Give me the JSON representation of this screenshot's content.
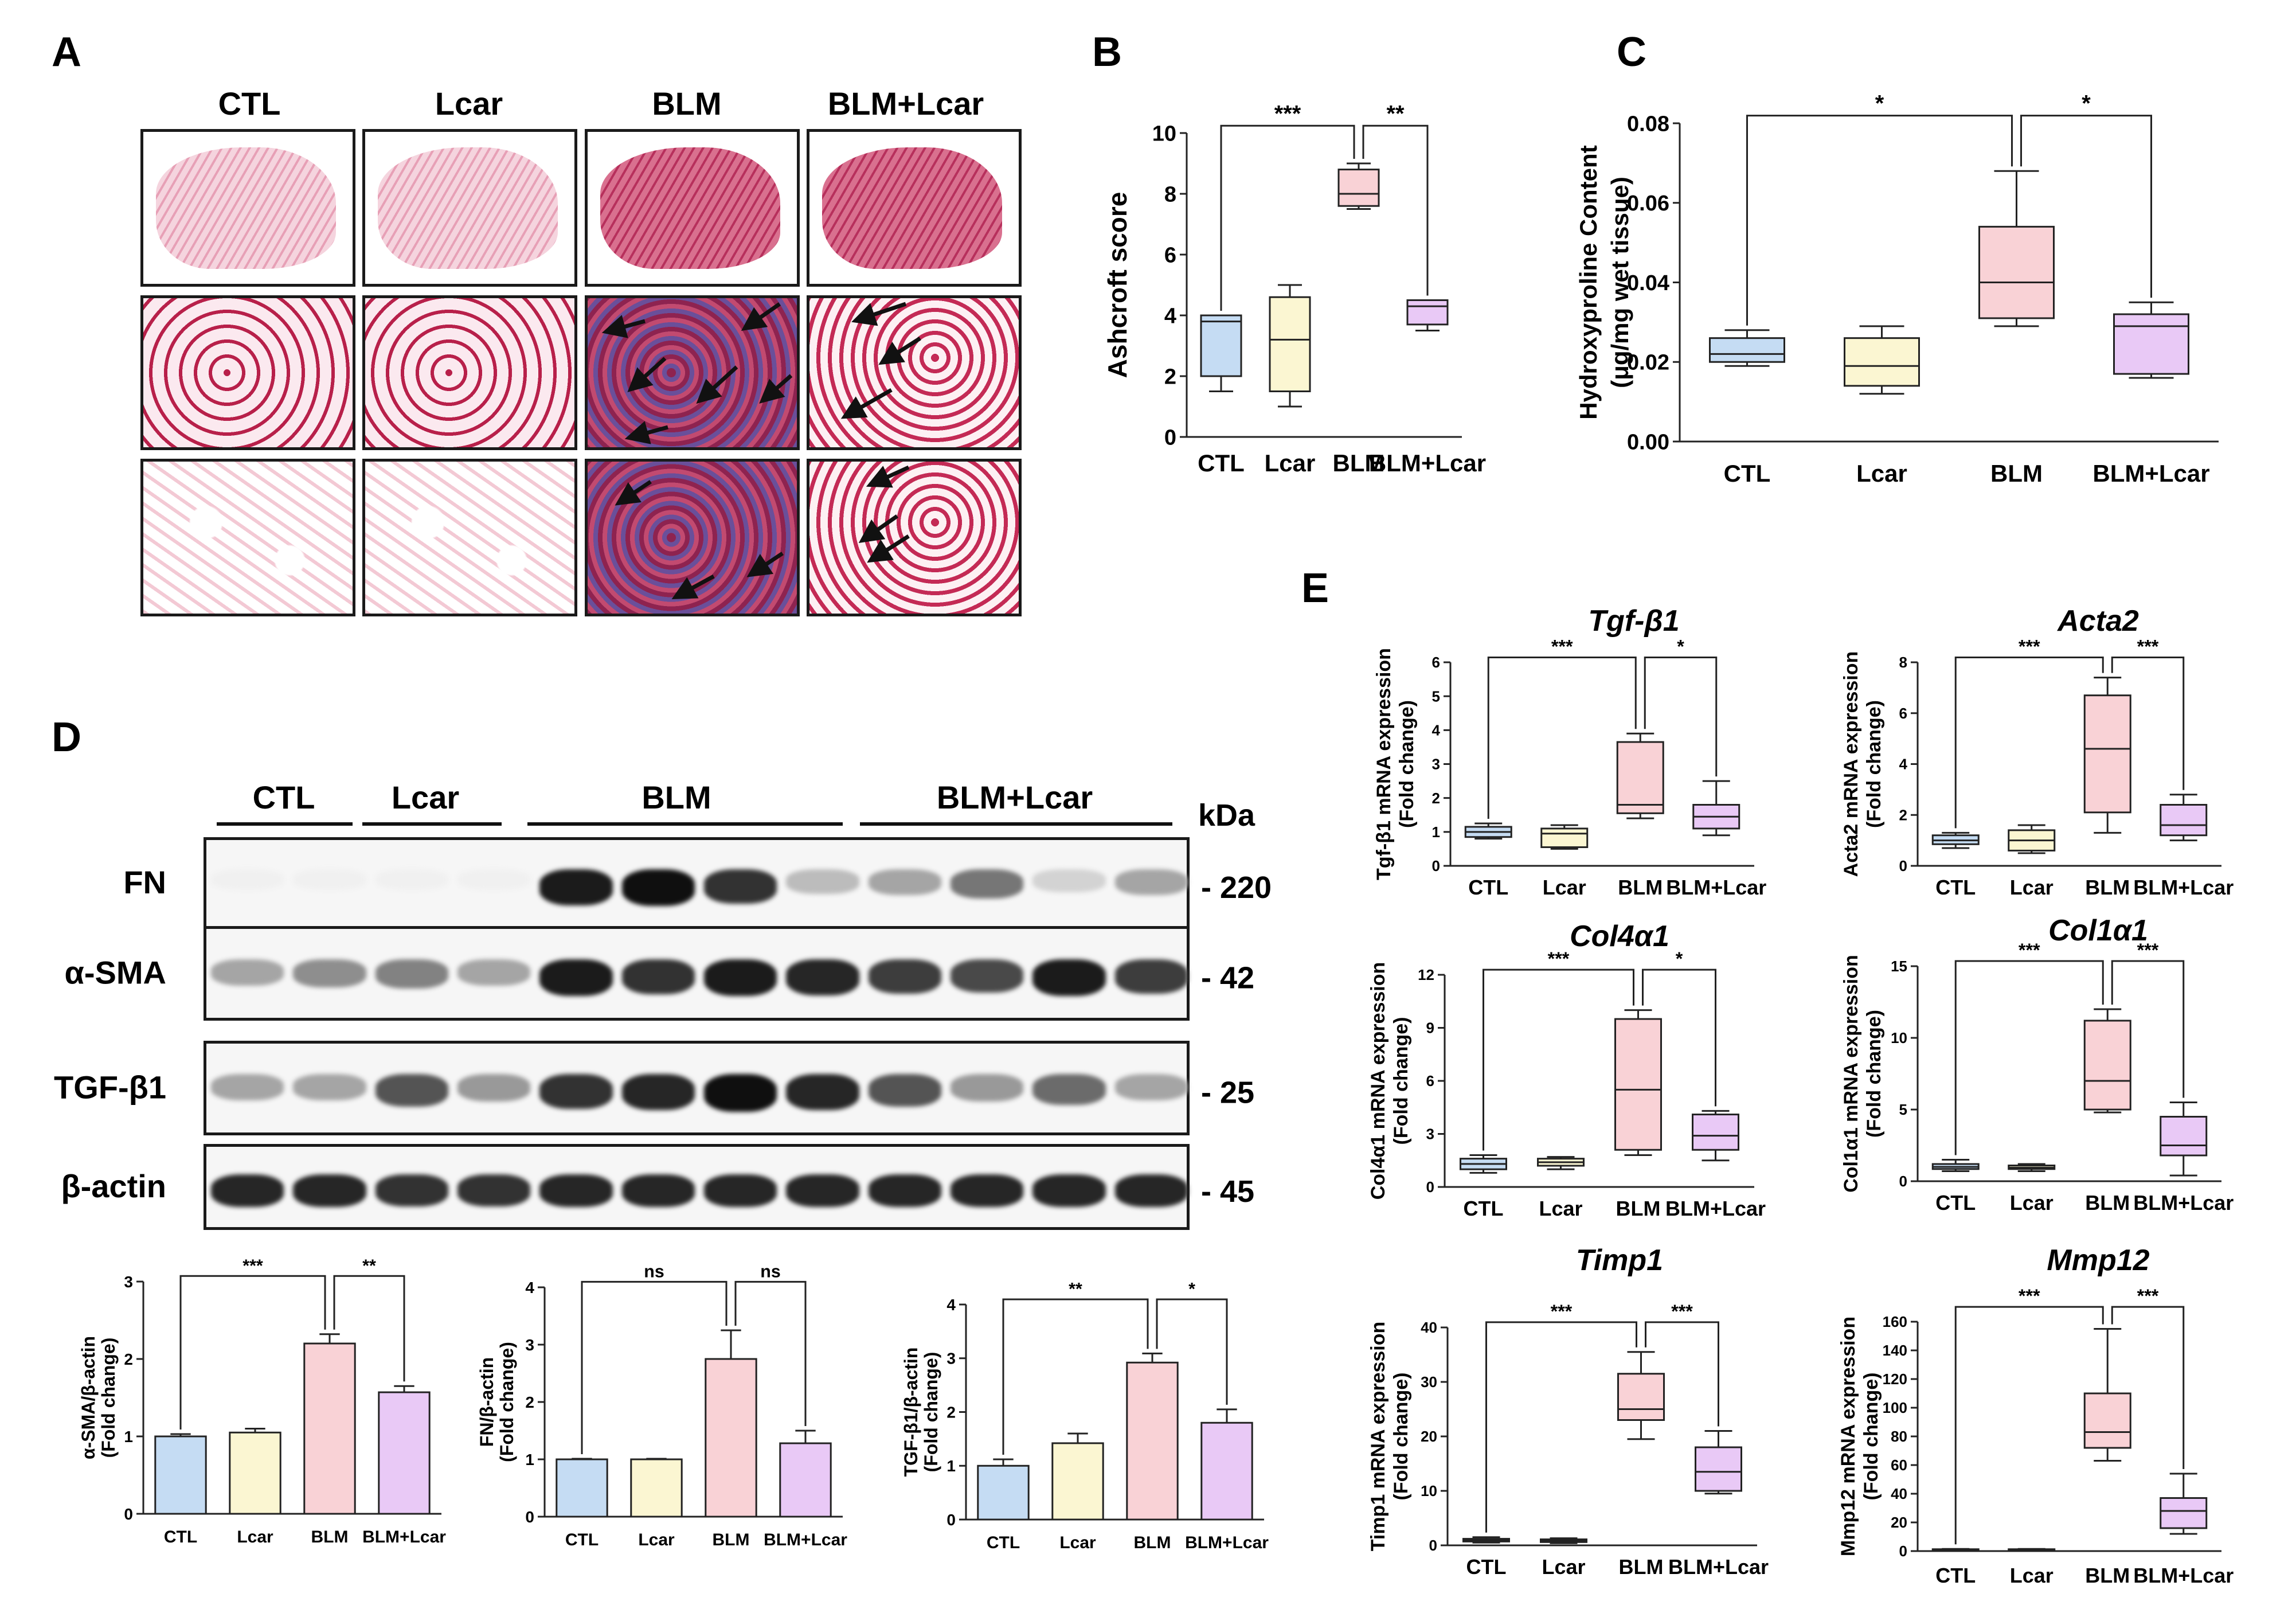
{
  "panel_letters": {
    "A": "A",
    "B": "B",
    "C": "C",
    "D": "D",
    "E": "E"
  },
  "groups": [
    "CTL",
    "Lcar",
    "BLM",
    "BLM+Lcar"
  ],
  "colors": {
    "CTL": "#c5dcf3",
    "Lcar": "#fbf6d2",
    "BLM": "#f9d2d6",
    "BLM+Lcar": "#e9c9f6"
  },
  "panel_a": {
    "headers": [
      "CTL",
      "Lcar",
      "BLM",
      "BLM+Lcar"
    ]
  },
  "panel_d": {
    "group_headers": [
      "CTL",
      "Lcar",
      "BLM",
      "BLM+Lcar"
    ],
    "kda_label": "kDa",
    "bands": [
      {
        "name": "FN",
        "kda": "- 220",
        "intensity": [
          0.02,
          0.02,
          0.02,
          0.02,
          0.95,
          1.0,
          0.85,
          0.25,
          0.35,
          0.55,
          0.15,
          0.35
        ]
      },
      {
        "name": "α-SMA",
        "kda": "- 42",
        "intensity": [
          0.35,
          0.45,
          0.5,
          0.35,
          0.95,
          0.85,
          0.95,
          0.9,
          0.8,
          0.75,
          0.95,
          0.8
        ]
      },
      {
        "name": "TGF-β1",
        "kda": "- 25",
        "intensity": [
          0.35,
          0.35,
          0.7,
          0.4,
          0.85,
          0.9,
          1.0,
          0.9,
          0.7,
          0.4,
          0.6,
          0.35
        ]
      },
      {
        "name": "β-actin",
        "kda": "- 45",
        "intensity": [
          0.9,
          0.9,
          0.85,
          0.85,
          0.9,
          0.9,
          0.9,
          0.9,
          0.9,
          0.9,
          0.9,
          0.9
        ]
      }
    ]
  },
  "chart_data": [
    {
      "panel": "B",
      "type": "box",
      "categories": [
        "CTL",
        "Lcar",
        "BLM",
        "BLM+Lcar"
      ],
      "ylabel": "Ashcroft score",
      "ylim": [
        0,
        10
      ],
      "yticks": [
        "0",
        "2",
        "4",
        "6",
        "8",
        "10"
      ],
      "boxes": [
        {
          "min": 1.5,
          "q1": 2,
          "median": 3.8,
          "q3": 4,
          "max": 4
        },
        {
          "min": 1,
          "q1": 1.5,
          "median": 3.2,
          "q3": 4.6,
          "max": 5
        },
        {
          "min": 7.5,
          "q1": 7.6,
          "median": 8,
          "q3": 8.8,
          "max": 9
        },
        {
          "min": 3.5,
          "q1": 3.7,
          "median": 4.3,
          "q3": 4.5,
          "max": 4.5
        }
      ],
      "sig": [
        {
          "from": 0,
          "to": 2,
          "label": "***"
        },
        {
          "from": 2,
          "to": 3,
          "label": "**"
        }
      ]
    },
    {
      "panel": "C",
      "type": "box",
      "categories": [
        "CTL",
        "Lcar",
        "BLM",
        "BLM+Lcar"
      ],
      "ylabel": "Hydroxyproline Content",
      "ylabel2": "(μg/mg wet tissue)",
      "ylim": [
        0,
        0.08
      ],
      "yticks": [
        "0.00",
        "0.02",
        "0.04",
        "0.06",
        "0.08"
      ],
      "boxes": [
        {
          "min": 0.019,
          "q1": 0.02,
          "median": 0.022,
          "q3": 0.026,
          "max": 0.028
        },
        {
          "min": 0.012,
          "q1": 0.014,
          "median": 0.019,
          "q3": 0.026,
          "max": 0.029
        },
        {
          "min": 0.029,
          "q1": 0.031,
          "median": 0.04,
          "q3": 0.054,
          "max": 0.068
        },
        {
          "min": 0.016,
          "q1": 0.017,
          "median": 0.029,
          "q3": 0.032,
          "max": 0.035
        }
      ],
      "sig": [
        {
          "from": 0,
          "to": 2,
          "label": "*"
        },
        {
          "from": 2,
          "to": 3,
          "label": "*"
        }
      ]
    },
    {
      "panel": "D1",
      "type": "bar",
      "categories": [
        "CTL",
        "Lcar",
        "BLM",
        "BLM+Lcar"
      ],
      "ylabel": "α-SMA/β-actin",
      "ylabel2": "(Fold change)",
      "ylim": [
        0,
        3
      ],
      "yticks": [
        "0",
        "1",
        "2",
        "3"
      ],
      "values": [
        1.0,
        1.05,
        2.2,
        1.57
      ],
      "errors": [
        0.03,
        0.05,
        0.12,
        0.08
      ],
      "sig": [
        {
          "from": 0,
          "to": 2,
          "label": "***"
        },
        {
          "from": 2,
          "to": 3,
          "label": "**"
        }
      ]
    },
    {
      "panel": "D2",
      "type": "bar",
      "categories": [
        "CTL",
        "Lcar",
        "BLM",
        "BLM+Lcar"
      ],
      "ylabel": "FN/β-actin",
      "ylabel2": "(Fold change)",
      "ylim": [
        0,
        4
      ],
      "yticks": [
        "0",
        "1",
        "2",
        "3",
        "4"
      ],
      "values": [
        1.0,
        1.0,
        2.75,
        1.28
      ],
      "errors": [
        0.01,
        0.01,
        0.5,
        0.22
      ],
      "sig": [
        {
          "from": 0,
          "to": 2,
          "label": "ns"
        },
        {
          "from": 2,
          "to": 3,
          "label": "ns"
        }
      ]
    },
    {
      "panel": "D3",
      "type": "bar",
      "categories": [
        "CTL",
        "Lcar",
        "BLM",
        "BLM+Lcar"
      ],
      "ylabel": "TGF-β1/β-actin",
      "ylabel2": "(Fold change)",
      "ylim": [
        0,
        4
      ],
      "yticks": [
        "0",
        "1",
        "2",
        "3",
        "4"
      ],
      "values": [
        1.0,
        1.42,
        2.92,
        1.8
      ],
      "errors": [
        0.12,
        0.18,
        0.17,
        0.25
      ],
      "sig": [
        {
          "from": 0,
          "to": 2,
          "label": "**"
        },
        {
          "from": 2,
          "to": 3,
          "label": "*"
        }
      ]
    },
    {
      "panel": "E1",
      "type": "box",
      "title": "Tgf-β1",
      "categories": [
        "CTL",
        "Lcar",
        "BLM",
        "BLM+Lcar"
      ],
      "ylabel": "Tgf-β1 mRNA expression",
      "ylabel2": "(Fold change)",
      "ylim": [
        0,
        6
      ],
      "yticks": [
        "0",
        "1",
        "2",
        "3",
        "4",
        "5",
        "6"
      ],
      "boxes": [
        {
          "min": 0.8,
          "q1": 0.85,
          "median": 1.0,
          "q3": 1.15,
          "max": 1.25
        },
        {
          "min": 0.5,
          "q1": 0.55,
          "median": 0.95,
          "q3": 1.1,
          "max": 1.2
        },
        {
          "min": 1.4,
          "q1": 1.55,
          "median": 1.8,
          "q3": 3.65,
          "max": 3.9
        },
        {
          "min": 0.9,
          "q1": 1.1,
          "median": 1.45,
          "q3": 1.8,
          "max": 2.5
        }
      ],
      "sig": [
        {
          "from": 0,
          "to": 2,
          "label": "***"
        },
        {
          "from": 2,
          "to": 3,
          "label": "*"
        }
      ]
    },
    {
      "panel": "E2",
      "type": "box",
      "title": "Acta2",
      "categories": [
        "CTL",
        "Lcar",
        "BLM",
        "BLM+Lcar"
      ],
      "ylabel": "Acta2 mRNA expression",
      "ylabel2": "(Fold change)",
      "ylim": [
        0,
        8
      ],
      "yticks": [
        "0",
        "2",
        "4",
        "6",
        "8"
      ],
      "boxes": [
        {
          "min": 0.7,
          "q1": 0.85,
          "median": 1.0,
          "q3": 1.2,
          "max": 1.3
        },
        {
          "min": 0.5,
          "q1": 0.6,
          "median": 1.0,
          "q3": 1.4,
          "max": 1.6
        },
        {
          "min": 1.3,
          "q1": 2.1,
          "median": 4.6,
          "q3": 6.7,
          "max": 7.4
        },
        {
          "min": 1.0,
          "q1": 1.2,
          "median": 1.6,
          "q3": 2.4,
          "max": 2.8
        }
      ],
      "sig": [
        {
          "from": 0,
          "to": 2,
          "label": "***"
        },
        {
          "from": 2,
          "to": 3,
          "label": "***"
        }
      ]
    },
    {
      "panel": "E3",
      "type": "box",
      "title": "Col4α1",
      "categories": [
        "CTL",
        "Lcar",
        "BLM",
        "BLM+Lcar"
      ],
      "ylabel": "Col4α1 mRNA expression",
      "ylabel2": "(Fold change)",
      "ylim": [
        0,
        12
      ],
      "yticks": [
        "0",
        "3",
        "6",
        "9",
        "12"
      ],
      "boxes": [
        {
          "min": 0.8,
          "q1": 1.0,
          "median": 1.3,
          "q3": 1.6,
          "max": 1.8
        },
        {
          "min": 1.0,
          "q1": 1.2,
          "median": 1.4,
          "q3": 1.6,
          "max": 1.7
        },
        {
          "min": 1.8,
          "q1": 2.1,
          "median": 5.5,
          "q3": 9.5,
          "max": 10
        },
        {
          "min": 1.5,
          "q1": 2.1,
          "median": 2.9,
          "q3": 4.1,
          "max": 4.3
        }
      ],
      "sig": [
        {
          "from": 0,
          "to": 2,
          "label": "***"
        },
        {
          "from": 2,
          "to": 3,
          "label": "*"
        }
      ]
    },
    {
      "panel": "E4",
      "type": "box",
      "title": "Col1α1",
      "categories": [
        "CTL",
        "Lcar",
        "BLM",
        "BLM+Lcar"
      ],
      "ylabel": "Col1α1 mRNA expression",
      "ylabel2": "(Fold change)",
      "ylim": [
        0,
        15
      ],
      "yticks": [
        "0",
        "5",
        "10",
        "15"
      ],
      "boxes": [
        {
          "min": 0.7,
          "q1": 0.85,
          "median": 1.0,
          "q3": 1.2,
          "max": 1.5
        },
        {
          "min": 0.7,
          "q1": 0.85,
          "median": 0.95,
          "q3": 1.1,
          "max": 1.2
        },
        {
          "min": 4.8,
          "q1": 5.0,
          "median": 7.0,
          "q3": 11.2,
          "max": 12
        },
        {
          "min": 0.4,
          "q1": 1.8,
          "median": 2.5,
          "q3": 4.5,
          "max": 5.5
        }
      ],
      "sig": [
        {
          "from": 0,
          "to": 2,
          "label": "***"
        },
        {
          "from": 2,
          "to": 3,
          "label": "***"
        }
      ]
    },
    {
      "panel": "E5",
      "type": "box",
      "title": "Timp1",
      "categories": [
        "CTL",
        "Lcar",
        "BLM",
        "BLM+Lcar"
      ],
      "ylabel": "Timp1 mRNA expression",
      "ylabel2": "(Fold change)",
      "ylim": [
        0,
        40
      ],
      "yticks": [
        "0",
        "10",
        "20",
        "30",
        "40"
      ],
      "boxes": [
        {
          "min": 0.5,
          "q1": 0.7,
          "median": 1.0,
          "q3": 1.2,
          "max": 1.5
        },
        {
          "min": 0.4,
          "q1": 0.6,
          "median": 0.9,
          "q3": 1.1,
          "max": 1.3
        },
        {
          "min": 19.5,
          "q1": 23,
          "median": 25,
          "q3": 31.5,
          "max": 35.5
        },
        {
          "min": 9.5,
          "q1": 10,
          "median": 13.5,
          "q3": 18,
          "max": 21
        }
      ],
      "sig": [
        {
          "from": 0,
          "to": 2,
          "label": "***"
        },
        {
          "from": 2,
          "to": 3,
          "label": "***"
        }
      ]
    },
    {
      "panel": "E6",
      "type": "box",
      "title": "Mmp12",
      "categories": [
        "CTL",
        "Lcar",
        "BLM",
        "BLM+Lcar"
      ],
      "ylabel": "Mmp12 mRNA expression",
      "ylabel2": "(Fold change)",
      "ylim": [
        0,
        160
      ],
      "yticks": [
        "0",
        "20",
        "40",
        "60",
        "80",
        "100",
        "120",
        "140",
        "160"
      ],
      "boxes": [
        {
          "min": 0.5,
          "q1": 0.7,
          "median": 1.0,
          "q3": 1.3,
          "max": 1.5
        },
        {
          "min": 0.5,
          "q1": 0.7,
          "median": 1.0,
          "q3": 1.3,
          "max": 1.5
        },
        {
          "min": 63,
          "q1": 72,
          "median": 83,
          "q3": 110,
          "max": 155
        },
        {
          "min": 12,
          "q1": 16,
          "median": 28,
          "q3": 37,
          "max": 54
        }
      ],
      "sig": [
        {
          "from": 0,
          "to": 2,
          "label": "***"
        },
        {
          "from": 2,
          "to": 3,
          "label": "***"
        }
      ]
    }
  ]
}
